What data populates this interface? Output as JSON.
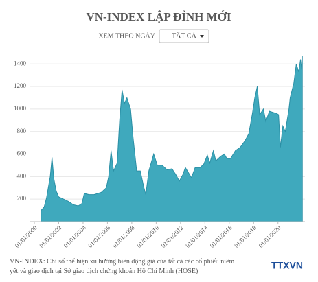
{
  "chart_data": {
    "type": "area",
    "title": "VN-INDEX LẬP ĐỈNH MỚI",
    "filter_label": "XEM THEO NGÀY",
    "filter_value": "TẤT CẢ",
    "footnote": "VN-INDEX: Chỉ số thể hiện xu hướng biến động giá của tất cả các cổ phiếu niêm yết và giao dịch tại Sở giao dịch chứng khoán Hồ Chí Minh (HOSE)",
    "logo": "TTXVN",
    "color": "#3fa9bd",
    "grid": true,
    "xlim": [
      2000,
      2022.1
    ],
    "ylim": [
      0,
      1450
    ],
    "yticks": [
      200,
      400,
      600,
      800,
      1000,
      1200,
      1400
    ],
    "xticks": [
      {
        "value": 2000,
        "label": "01/01/2000"
      },
      {
        "value": 2002,
        "label": "01/01/2002"
      },
      {
        "value": 2004,
        "label": "01/01/2004"
      },
      {
        "value": 2006,
        "label": "01/01/2006"
      },
      {
        "value": 2008,
        "label": "01/01/2008"
      },
      {
        "value": 2010,
        "label": "01/01/2010"
      },
      {
        "value": 2012,
        "label": "01/01/2012"
      },
      {
        "value": 2014,
        "label": "01/01/2014"
      },
      {
        "value": 2016,
        "label": "01/01/2016"
      },
      {
        "value": 2018,
        "label": "01/01/2018"
      },
      {
        "value": 2020,
        "label": "01/01/2020"
      }
    ],
    "x": [
      2000.55,
      2000.8,
      2001.0,
      2001.3,
      2001.45,
      2001.6,
      2001.8,
      2002.0,
      2002.4,
      2002.8,
      2003.2,
      2003.6,
      2003.9,
      2004.1,
      2004.5,
      2004.9,
      2005.5,
      2005.9,
      2006.1,
      2006.3,
      2006.5,
      2006.8,
      2007.0,
      2007.2,
      2007.4,
      2007.6,
      2007.9,
      2008.1,
      2008.4,
      2008.7,
      2009.0,
      2009.15,
      2009.4,
      2009.8,
      2010.1,
      2010.5,
      2010.9,
      2011.3,
      2011.6,
      2011.9,
      2012.2,
      2012.4,
      2012.9,
      2013.2,
      2013.6,
      2013.9,
      2014.2,
      2014.4,
      2014.7,
      2014.9,
      2015.3,
      2015.6,
      2015.8,
      2016.1,
      2016.5,
      2016.9,
      2017.3,
      2017.6,
      2017.9,
      2018.1,
      2018.3,
      2018.5,
      2018.8,
      2019.0,
      2019.3,
      2019.6,
      2019.9,
      2020.05,
      2020.2,
      2020.4,
      2020.6,
      2020.9,
      2021.0,
      2021.3,
      2021.5,
      2021.7,
      2021.85,
      2021.95,
      2022.0
    ],
    "values": [
      100,
      130,
      210,
      400,
      571,
      380,
      270,
      220,
      200,
      180,
      150,
      140,
      160,
      250,
      240,
      240,
      260,
      300,
      400,
      630,
      450,
      520,
      900,
      1170,
      1050,
      1100,
      1000,
      750,
      450,
      450,
      300,
      240,
      450,
      600,
      500,
      500,
      460,
      470,
      420,
      360,
      420,
      480,
      390,
      480,
      480,
      510,
      590,
      520,
      630,
      540,
      580,
      600,
      560,
      560,
      630,
      660,
      720,
      780,
      960,
      1100,
      1200,
      950,
      1000,
      890,
      980,
      970,
      960,
      950,
      660,
      850,
      800,
      1000,
      1100,
      1230,
      1400,
      1330,
      1440,
      1350,
      1470
    ]
  }
}
